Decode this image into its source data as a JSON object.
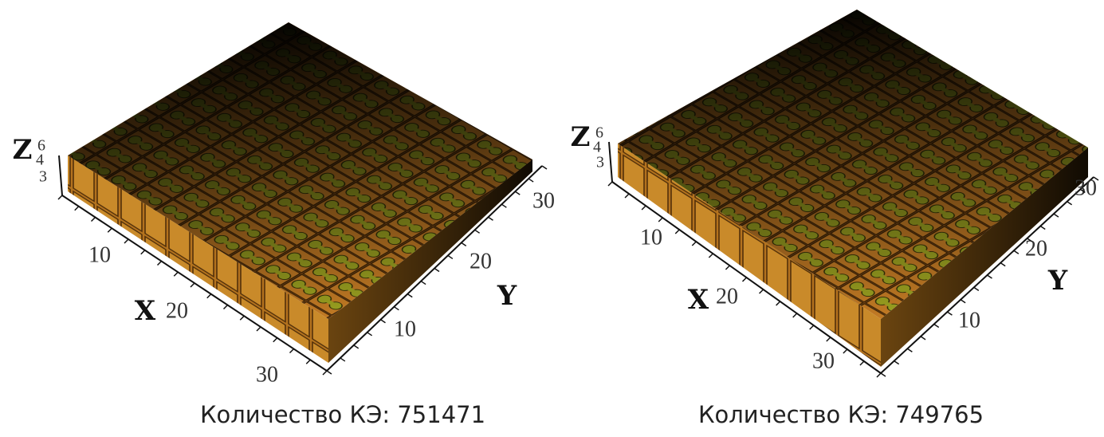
{
  "panels": [
    {
      "z_label": "Z",
      "z_ticks": [
        6,
        4,
        3
      ],
      "x_label": "X",
      "x_ticks": [
        10,
        20,
        30
      ],
      "y_label": "Y",
      "y_ticks": [
        10,
        20,
        30
      ],
      "caption": "Количество КЭ: 751471"
    },
    {
      "z_label": "Z",
      "z_ticks": [
        6,
        4,
        3
      ],
      "x_label": "X",
      "x_ticks": [
        10,
        20,
        30
      ],
      "y_label": "Y",
      "y_ticks": [
        10,
        20,
        30
      ],
      "caption": "Количество КЭ: 749765"
    }
  ]
}
